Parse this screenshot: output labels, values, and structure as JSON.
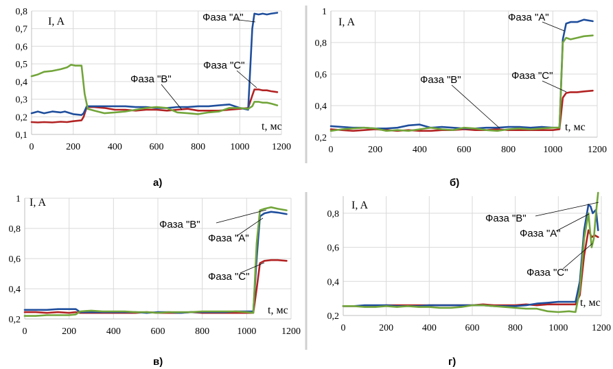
{
  "colors": {
    "A": "#1f4e9c",
    "B": "#72a53a",
    "C": "#b22222"
  },
  "chart_data": [
    {
      "panel": "a",
      "caption": "а)",
      "type": "line",
      "ylabel": "I, A",
      "xlabel": "t, мс",
      "xlim": [
        0,
        1200
      ],
      "ylim": [
        0.1,
        0.8
      ],
      "xticks": [
        0,
        200,
        400,
        600,
        800,
        1000,
        1200
      ],
      "yticks": [
        0.1,
        0.2,
        0.3,
        0.4,
        0.5,
        0.6,
        0.7,
        0.8
      ],
      "ytick_labels": [
        "0,1",
        "0,2",
        "0,3",
        "0,4",
        "0,5",
        "0,6",
        "0,7",
        "0,8"
      ],
      "series": [
        {
          "name": "Фаза \"А\"",
          "color_key": "A",
          "x": [
            0,
            30,
            60,
            100,
            140,
            160,
            200,
            240,
            250,
            265,
            300,
            350,
            400,
            450,
            500,
            550,
            600,
            650,
            700,
            750,
            800,
            850,
            900,
            950,
            1000,
            1040,
            1060,
            1070,
            1090,
            1110,
            1130,
            1150,
            1180
          ],
          "y": [
            0.22,
            0.23,
            0.22,
            0.23,
            0.225,
            0.23,
            0.215,
            0.21,
            0.22,
            0.26,
            0.26,
            0.26,
            0.26,
            0.26,
            0.255,
            0.255,
            0.25,
            0.25,
            0.255,
            0.255,
            0.26,
            0.26,
            0.265,
            0.27,
            0.25,
            0.24,
            0.7,
            0.785,
            0.78,
            0.785,
            0.78,
            0.785,
            0.79
          ]
        },
        {
          "name": "Фаза \"В\"",
          "color_key": "B",
          "x": [
            0,
            30,
            60,
            100,
            140,
            170,
            190,
            210,
            240,
            255,
            270,
            300,
            350,
            400,
            450,
            500,
            550,
            600,
            650,
            700,
            750,
            800,
            850,
            900,
            950,
            1000,
            1040,
            1060,
            1070,
            1090,
            1110,
            1130,
            1150,
            1180
          ],
          "y": [
            0.43,
            0.44,
            0.455,
            0.46,
            0.47,
            0.48,
            0.495,
            0.49,
            0.49,
            0.33,
            0.245,
            0.235,
            0.22,
            0.225,
            0.23,
            0.24,
            0.25,
            0.255,
            0.25,
            0.225,
            0.22,
            0.215,
            0.225,
            0.23,
            0.25,
            0.25,
            0.245,
            0.26,
            0.285,
            0.285,
            0.28,
            0.28,
            0.275,
            0.265
          ]
        },
        {
          "name": "Фаза \"С\"",
          "color_key": "C",
          "x": [
            0,
            30,
            60,
            100,
            140,
            170,
            200,
            240,
            250,
            265,
            300,
            350,
            400,
            450,
            500,
            550,
            600,
            650,
            700,
            750,
            800,
            850,
            900,
            950,
            1000,
            1040,
            1060,
            1070,
            1090,
            1110,
            1130,
            1150,
            1180
          ],
          "y": [
            0.17,
            0.168,
            0.17,
            0.168,
            0.172,
            0.17,
            0.175,
            0.18,
            0.2,
            0.255,
            0.255,
            0.25,
            0.24,
            0.24,
            0.235,
            0.24,
            0.24,
            0.235,
            0.24,
            0.245,
            0.235,
            0.235,
            0.235,
            0.24,
            0.245,
            0.25,
            0.32,
            0.355,
            0.355,
            0.35,
            0.35,
            0.345,
            0.34
          ]
        }
      ],
      "annotations": [
        {
          "text": "Фаза \"А\"",
          "series": "A"
        },
        {
          "text": "Фаза \"С\"",
          "series": "C"
        },
        {
          "text": "Фаза \"В\"",
          "series": "B"
        }
      ]
    },
    {
      "panel": "b",
      "caption": "б)",
      "type": "line",
      "ylabel": "I, A",
      "xlabel": "t, мс",
      "xlim": [
        0,
        1200
      ],
      "ylim": [
        0.2,
        1.0
      ],
      "xticks": [
        0,
        200,
        400,
        600,
        800,
        1000,
        1200
      ],
      "yticks": [
        0.2,
        0.4,
        0.6,
        0.8,
        1.0
      ],
      "ytick_labels": [
        "0,2",
        "0,4",
        "0,6",
        "0,8",
        "1"
      ],
      "series": [
        {
          "name": "Фаза \"А\"",
          "color_key": "A",
          "x": [
            0,
            50,
            100,
            150,
            200,
            250,
            300,
            350,
            400,
            450,
            500,
            550,
            600,
            650,
            700,
            750,
            800,
            850,
            900,
            950,
            1000,
            1030,
            1045,
            1060,
            1080,
            1110,
            1140,
            1180
          ],
          "y": [
            0.27,
            0.265,
            0.26,
            0.26,
            0.255,
            0.255,
            0.26,
            0.275,
            0.28,
            0.26,
            0.265,
            0.26,
            0.255,
            0.255,
            0.26,
            0.26,
            0.265,
            0.265,
            0.26,
            0.265,
            0.26,
            0.26,
            0.82,
            0.92,
            0.93,
            0.93,
            0.945,
            0.935
          ]
        },
        {
          "name": "Фаза \"В\"",
          "color_key": "B",
          "x": [
            0,
            50,
            100,
            150,
            200,
            250,
            300,
            350,
            400,
            450,
            500,
            550,
            600,
            650,
            700,
            750,
            800,
            850,
            900,
            950,
            1000,
            1030,
            1045,
            1060,
            1080,
            1110,
            1140,
            1180
          ],
          "y": [
            0.24,
            0.25,
            0.255,
            0.26,
            0.255,
            0.24,
            0.245,
            0.24,
            0.25,
            0.26,
            0.25,
            0.245,
            0.26,
            0.255,
            0.245,
            0.24,
            0.25,
            0.255,
            0.25,
            0.255,
            0.26,
            0.26,
            0.8,
            0.83,
            0.82,
            0.83,
            0.84,
            0.845
          ]
        },
        {
          "name": "Фаза \"С\"",
          "color_key": "C",
          "x": [
            0,
            50,
            100,
            150,
            200,
            250,
            300,
            350,
            400,
            450,
            500,
            550,
            600,
            650,
            700,
            750,
            800,
            850,
            900,
            950,
            1000,
            1030,
            1045,
            1060,
            1080,
            1110,
            1140,
            1180
          ],
          "y": [
            0.25,
            0.245,
            0.24,
            0.245,
            0.25,
            0.245,
            0.24,
            0.245,
            0.24,
            0.24,
            0.245,
            0.245,
            0.25,
            0.245,
            0.245,
            0.25,
            0.245,
            0.245,
            0.245,
            0.245,
            0.245,
            0.25,
            0.45,
            0.48,
            0.485,
            0.485,
            0.49,
            0.495
          ]
        }
      ],
      "annotations": [
        {
          "text": "Фаза \"А\"",
          "series": "A"
        },
        {
          "text": "Фаза \"С\"",
          "series": "C"
        },
        {
          "text": "Фаза \"В\"",
          "series": "B"
        }
      ]
    },
    {
      "panel": "c",
      "caption": "в)",
      "type": "line",
      "ylabel": "I, A",
      "xlabel": "t, мс",
      "xlim": [
        0,
        1200
      ],
      "ylim": [
        0.2,
        1.0
      ],
      "xticks": [
        0,
        200,
        400,
        600,
        800,
        1000,
        1200
      ],
      "yticks": [
        0.2,
        0.4,
        0.6,
        0.8,
        1.0
      ],
      "ytick_labels": [
        "0,2",
        "0,4",
        "0,6",
        "0,8",
        "1"
      ],
      "series": [
        {
          "name": "Фаза \"А\"",
          "color_key": "A",
          "x": [
            0,
            50,
            100,
            150,
            200,
            230,
            250,
            300,
            350,
            400,
            450,
            500,
            550,
            600,
            650,
            700,
            750,
            800,
            850,
            900,
            950,
            1000,
            1030,
            1045,
            1060,
            1080,
            1110,
            1140,
            1180
          ],
          "y": [
            0.26,
            0.26,
            0.26,
            0.265,
            0.265,
            0.265,
            0.245,
            0.245,
            0.245,
            0.245,
            0.245,
            0.245,
            0.24,
            0.245,
            0.245,
            0.24,
            0.245,
            0.245,
            0.245,
            0.245,
            0.25,
            0.25,
            0.25,
            0.6,
            0.88,
            0.9,
            0.91,
            0.905,
            0.895
          ]
        },
        {
          "name": "Фаза \"В\"",
          "color_key": "B",
          "x": [
            0,
            50,
            100,
            150,
            200,
            230,
            250,
            300,
            350,
            400,
            450,
            500,
            550,
            600,
            650,
            700,
            750,
            800,
            850,
            900,
            950,
            1000,
            1030,
            1045,
            1060,
            1080,
            1110,
            1140,
            1180
          ],
          "y": [
            0.22,
            0.22,
            0.225,
            0.225,
            0.225,
            0.23,
            0.25,
            0.255,
            0.25,
            0.25,
            0.25,
            0.245,
            0.245,
            0.24,
            0.245,
            0.245,
            0.245,
            0.25,
            0.25,
            0.25,
            0.25,
            0.245,
            0.24,
            0.7,
            0.92,
            0.93,
            0.94,
            0.93,
            0.92
          ]
        },
        {
          "name": "Фаза \"С\"",
          "color_key": "C",
          "x": [
            0,
            50,
            100,
            150,
            200,
            230,
            250,
            300,
            350,
            400,
            450,
            500,
            550,
            600,
            650,
            700,
            750,
            800,
            850,
            900,
            950,
            1000,
            1030,
            1045,
            1060,
            1080,
            1110,
            1140,
            1180
          ],
          "y": [
            0.245,
            0.245,
            0.24,
            0.245,
            0.24,
            0.245,
            0.24,
            0.24,
            0.24,
            0.24,
            0.24,
            0.24,
            0.245,
            0.24,
            0.24,
            0.24,
            0.245,
            0.24,
            0.24,
            0.24,
            0.24,
            0.24,
            0.24,
            0.4,
            0.57,
            0.585,
            0.59,
            0.59,
            0.585
          ]
        }
      ],
      "annotations": [
        {
          "text": "Фаза \"В\"",
          "series": "B"
        },
        {
          "text": "Фаза \"А\"",
          "series": "A"
        },
        {
          "text": "Фаза \"С\"",
          "series": "C"
        }
      ]
    },
    {
      "panel": "d",
      "caption": "г)",
      "type": "line",
      "ylabel": "I, A",
      "xlabel": "t, мс",
      "xlim": [
        0,
        1200
      ],
      "ylim": [
        0.2,
        0.9
      ],
      "xticks": [
        0,
        200,
        400,
        600,
        800,
        1000,
        1200
      ],
      "yticks": [
        0.2,
        0.4,
        0.6,
        0.8
      ],
      "ytick_labels": [
        "0,2",
        "0,4",
        "0,6",
        "0,8"
      ],
      "series": [
        {
          "name": "Фаза \"А\"",
          "color_key": "A",
          "x": [
            0,
            50,
            100,
            150,
            200,
            250,
            300,
            350,
            400,
            450,
            500,
            550,
            600,
            650,
            700,
            750,
            800,
            850,
            900,
            950,
            1000,
            1050,
            1080,
            1100,
            1120,
            1140,
            1150,
            1160,
            1175,
            1185
          ],
          "y": [
            0.255,
            0.255,
            0.26,
            0.26,
            0.26,
            0.255,
            0.255,
            0.255,
            0.26,
            0.26,
            0.26,
            0.26,
            0.26,
            0.26,
            0.255,
            0.255,
            0.255,
            0.26,
            0.27,
            0.275,
            0.28,
            0.28,
            0.28,
            0.4,
            0.7,
            0.85,
            0.84,
            0.8,
            0.82,
            0.7
          ]
        },
        {
          "name": "Фаза \"В\"",
          "color_key": "B",
          "x": [
            0,
            50,
            100,
            150,
            200,
            250,
            300,
            350,
            400,
            450,
            500,
            550,
            600,
            650,
            700,
            750,
            800,
            850,
            900,
            950,
            1000,
            1050,
            1080,
            1100,
            1120,
            1140,
            1155,
            1165,
            1175,
            1185
          ],
          "y": [
            0.255,
            0.255,
            0.25,
            0.25,
            0.255,
            0.25,
            0.255,
            0.25,
            0.25,
            0.245,
            0.245,
            0.25,
            0.26,
            0.26,
            0.255,
            0.25,
            0.245,
            0.24,
            0.24,
            0.225,
            0.22,
            0.225,
            0.22,
            0.35,
            0.65,
            0.8,
            0.6,
            0.65,
            0.8,
            0.92
          ]
        },
        {
          "name": "Фаза \"С\"",
          "color_key": "C",
          "x": [
            0,
            50,
            100,
            150,
            200,
            250,
            300,
            350,
            400,
            450,
            500,
            550,
            600,
            650,
            700,
            750,
            800,
            850,
            900,
            950,
            1000,
            1050,
            1080,
            1100,
            1120,
            1140,
            1155,
            1170,
            1185
          ],
          "y": [
            0.255,
            0.255,
            0.255,
            0.255,
            0.26,
            0.26,
            0.26,
            0.26,
            0.26,
            0.26,
            0.26,
            0.26,
            0.26,
            0.265,
            0.26,
            0.26,
            0.26,
            0.265,
            0.26,
            0.265,
            0.265,
            0.265,
            0.265,
            0.32,
            0.55,
            0.7,
            0.66,
            0.67,
            0.66
          ]
        }
      ],
      "annotations": [
        {
          "text": "Фаза \"В\"",
          "series": "B"
        },
        {
          "text": "Фаза \"А\"",
          "series": "A"
        },
        {
          "text": "Фаза \"С\"",
          "series": "C"
        }
      ]
    }
  ]
}
